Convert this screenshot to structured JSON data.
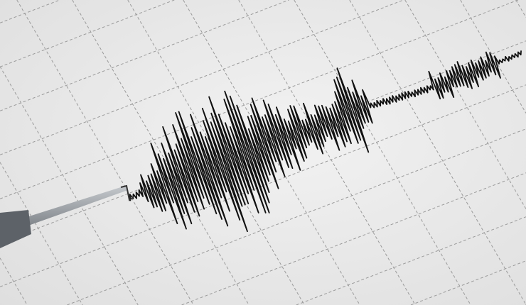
{
  "scene": {
    "subject": "seismograph-trace",
    "colors": {
      "paper": "#f2f2f2",
      "grid": "#9a9a9a",
      "trace": "#111111",
      "needle": "#8a8f96"
    }
  }
}
